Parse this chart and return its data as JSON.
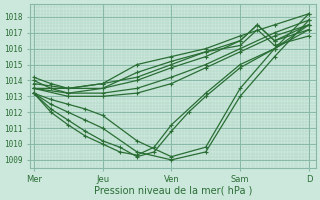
{
  "xlabel": "Pression niveau de la mer( hPa )",
  "ylim": [
    1008.5,
    1018.8
  ],
  "yticks": [
    1009,
    1010,
    1011,
    1012,
    1013,
    1014,
    1015,
    1016,
    1017,
    1018
  ],
  "xtick_labels": [
    "Mer",
    "Jeu",
    "Ven",
    "Sam",
    "D"
  ],
  "xtick_positions": [
    0,
    1,
    2,
    3,
    4
  ],
  "background_color": "#cce8dc",
  "grid_color_minor": "#aacfbf",
  "grid_color_major": "#88b8a8",
  "line_color": "#2a6e35",
  "xlim": [
    -0.05,
    4.1
  ],
  "lines": [
    {
      "x": [
        0.0,
        0.25,
        0.5,
        0.75,
        1.0,
        1.5,
        2.0,
        2.5,
        3.0,
        3.5,
        4.0
      ],
      "y": [
        1013.2,
        1012.8,
        1012.5,
        1012.2,
        1011.8,
        1010.2,
        1009.2,
        1009.8,
        1013.5,
        1016.0,
        1018.2
      ]
    },
    {
      "x": [
        0.0,
        0.25,
        0.5,
        0.75,
        1.0,
        1.5,
        2.0,
        2.5,
        3.0,
        3.5,
        4.0
      ],
      "y": [
        1013.2,
        1012.5,
        1012.0,
        1011.5,
        1011.0,
        1009.5,
        1009.0,
        1009.5,
        1013.0,
        1015.5,
        1017.8
      ]
    },
    {
      "x": [
        0.0,
        0.25,
        0.5,
        0.75,
        1.0,
        1.25,
        1.5,
        1.75,
        2.0,
        2.25,
        2.5,
        3.0,
        3.5,
        4.0
      ],
      "y": [
        1013.2,
        1012.2,
        1011.5,
        1010.8,
        1010.2,
        1009.8,
        1009.2,
        1009.5,
        1010.8,
        1012.0,
        1013.0,
        1014.8,
        1016.0,
        1017.5
      ]
    },
    {
      "x": [
        0.0,
        0.25,
        0.5,
        0.75,
        1.0,
        1.25,
        1.5,
        1.75,
        2.0,
        2.5,
        3.0,
        3.5,
        4.0
      ],
      "y": [
        1013.2,
        1012.0,
        1011.2,
        1010.5,
        1010.0,
        1009.5,
        1009.3,
        1009.8,
        1011.2,
        1013.2,
        1015.0,
        1016.0,
        1017.2
      ]
    },
    {
      "x": [
        0.0,
        0.5,
        1.0,
        1.5,
        2.0,
        2.5,
        3.0,
        3.5,
        4.0
      ],
      "y": [
        1013.5,
        1013.0,
        1013.0,
        1013.2,
        1013.8,
        1014.8,
        1015.8,
        1016.8,
        1017.5
      ]
    },
    {
      "x": [
        0.0,
        0.5,
        1.0,
        1.5,
        2.0,
        2.5,
        3.0,
        3.5,
        4.0
      ],
      "y": [
        1013.5,
        1013.2,
        1013.2,
        1013.5,
        1014.2,
        1015.0,
        1016.0,
        1017.0,
        1017.8
      ]
    },
    {
      "x": [
        0.0,
        0.5,
        1.0,
        1.5,
        2.0,
        2.5,
        3.0,
        3.25,
        3.5,
        4.0
      ],
      "y": [
        1013.5,
        1013.5,
        1013.5,
        1014.0,
        1014.8,
        1015.5,
        1016.5,
        1017.5,
        1016.5,
        1017.2
      ]
    },
    {
      "x": [
        0.0,
        0.5,
        1.0,
        1.5,
        2.0,
        2.5,
        3.0,
        3.25,
        3.5,
        4.0
      ],
      "y": [
        1013.8,
        1013.5,
        1013.8,
        1014.2,
        1015.0,
        1015.8,
        1016.2,
        1017.2,
        1016.2,
        1016.8
      ]
    },
    {
      "x": [
        0.0,
        0.25,
        0.5,
        1.0,
        1.5,
        2.0,
        2.5,
        3.0,
        3.25,
        3.5,
        4.0
      ],
      "y": [
        1014.0,
        1013.5,
        1013.2,
        1013.5,
        1014.5,
        1015.2,
        1015.8,
        1016.5,
        1017.5,
        1016.5,
        1017.5
      ]
    },
    {
      "x": [
        0.0,
        0.25,
        0.5,
        1.0,
        1.5,
        2.0,
        2.5,
        3.0,
        3.5,
        4.0
      ],
      "y": [
        1014.2,
        1013.8,
        1013.5,
        1013.8,
        1015.0,
        1015.5,
        1016.0,
        1016.8,
        1017.5,
        1018.2
      ]
    }
  ]
}
